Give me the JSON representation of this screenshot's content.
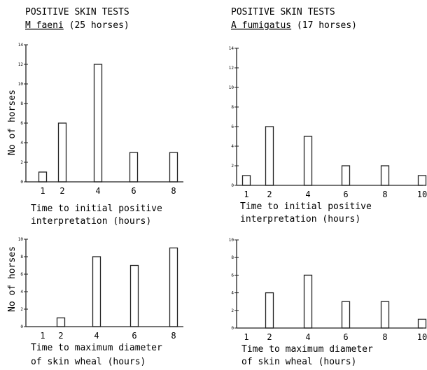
{
  "figure": {
    "panel_titles": [
      {
        "line1": "POSITIVE SKIN TESTS",
        "organism": "M faeni",
        "suffix": " (25 horses)"
      },
      {
        "line1": "POSITIVE SKIN TESTS",
        "organism": "A fumigatus",
        "suffix": " (17 horses)"
      }
    ],
    "ylabel": "No of horses",
    "xlabel_top_lines": [
      "Time to initial positive",
      "interpretation (hours)"
    ],
    "xlabel_bottom_lines": [
      "Time to maximum diameter",
      "of skin wheal (hours)"
    ]
  },
  "chart_data": [
    {
      "type": "bar",
      "panel": "top-left",
      "title": "POSITIVE SKIN TESTS M faeni (25 horses)",
      "xlabel": "Time to initial positive interpretation (hours)",
      "ylabel": "No of horses",
      "categories": [
        "1",
        "2",
        "4",
        "6",
        "8"
      ],
      "values": [
        1,
        6,
        12,
        3,
        3
      ],
      "yticks": [
        0,
        2,
        4,
        6,
        8,
        10,
        12,
        14
      ],
      "ylim": [
        0,
        14
      ]
    },
    {
      "type": "bar",
      "panel": "top-right",
      "title": "POSITIVE SKIN TESTS A fumigatus (17 horses)",
      "xlabel": "Time to initial positive interpretation (hours)",
      "ylabel": "",
      "categories": [
        "1",
        "2",
        "4",
        "6",
        "8",
        "10"
      ],
      "values": [
        1,
        6,
        5,
        2,
        2,
        1
      ],
      "yticks": [
        0,
        2,
        4,
        6,
        8,
        10,
        12,
        14
      ],
      "ylim": [
        0,
        14
      ]
    },
    {
      "type": "bar",
      "panel": "bottom-left",
      "title": "",
      "xlabel": "Time to maximum diameter of skin wheal (hours)",
      "ylabel": "No of horses",
      "categories": [
        "1",
        "2",
        "4",
        "6",
        "8"
      ],
      "values": [
        0,
        1,
        8,
        7,
        9
      ],
      "yticks": [
        0,
        2,
        4,
        6,
        8,
        10
      ],
      "ylim": [
        0,
        10
      ]
    },
    {
      "type": "bar",
      "panel": "bottom-right",
      "title": "",
      "xlabel": "Time to maximum diameter of skin wheal (hours)",
      "ylabel": "",
      "categories": [
        "1",
        "2",
        "4",
        "6",
        "8",
        "10"
      ],
      "values": [
        0,
        4,
        6,
        3,
        3,
        1
      ],
      "yticks": [
        0,
        2,
        4,
        6,
        8,
        10
      ],
      "ylim": [
        0,
        10
      ]
    }
  ]
}
